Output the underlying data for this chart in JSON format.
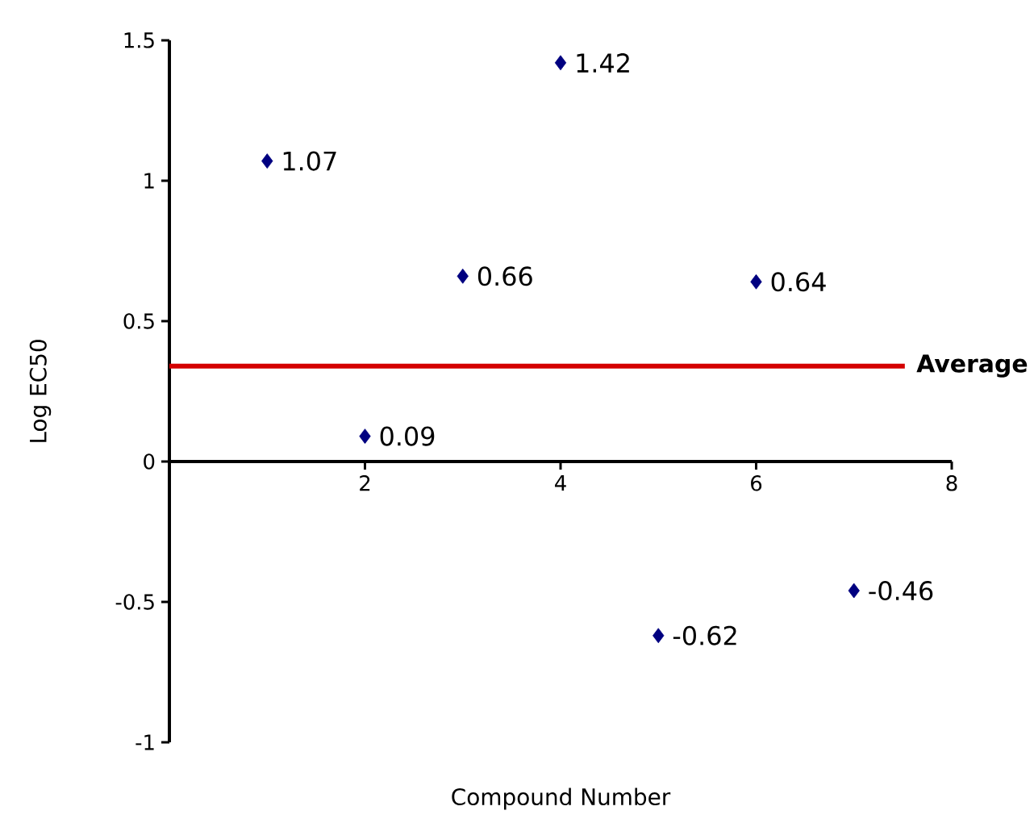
{
  "chart_data": {
    "type": "scatter",
    "xlabel": "Compound Number",
    "ylabel": "Log EC50",
    "x": [
      1,
      2,
      3,
      4,
      5,
      6,
      7
    ],
    "values": [
      1.07,
      0.09,
      0.66,
      1.42,
      -0.62,
      0.64,
      -0.46
    ],
    "color": "#000080",
    "marker": "diamond",
    "data_labels": true,
    "xlim": [
      0,
      8
    ],
    "xticks": [
      2,
      4,
      6,
      8
    ],
    "ylim": [
      -1,
      1.5
    ],
    "yticks": [
      -1,
      -0.5,
      0,
      0.5,
      1,
      1.5
    ],
    "ref_lines": [
      {
        "axis": "y",
        "value": 0.34,
        "label": "Average",
        "color": "#d40000"
      }
    ]
  }
}
